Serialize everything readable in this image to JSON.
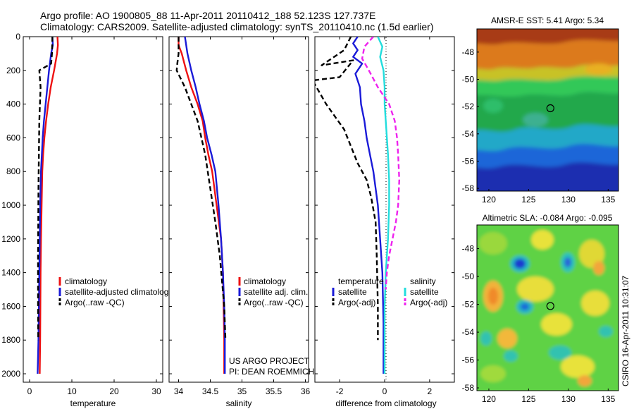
{
  "titles": {
    "line1": "Argo profile: AO 1900805_88 11-Apr-2011 20110412_188 52.123S 127.737E",
    "line2": "Climatology: CARS2009. Satellite-adjusted climatology: synTS_20110410.nc (1.5d earlier)"
  },
  "credit": {
    "line1": "US ARGO PROJECT",
    "line2": "PI: DEAN ROEMMICH",
    "stamp": "CSIRO 16-Apr-2011 10:31:07"
  },
  "colors": {
    "climatology": "#ee1111",
    "satellite": "#1a1ad8",
    "argo": "#000000",
    "salinity_satellite": "#22dddd",
    "salinity_argo": "#ee22ee"
  },
  "chart_data": [
    {
      "type": "line",
      "xlabel": "temperature",
      "ylabel": "",
      "xlim": [
        -1.5,
        31.5
      ],
      "ylim": [
        2050,
        0
      ],
      "xticks": [
        0,
        10,
        20,
        30
      ],
      "yticks": [
        0,
        200,
        400,
        600,
        800,
        1000,
        1200,
        1400,
        1600,
        1800,
        2000
      ],
      "legend": [
        "climatology",
        "satellite-adjusted climatology",
        "Argo(..raw -QC)"
      ],
      "series": [
        {
          "name": "climatology",
          "style": "solid",
          "x": [
            6.6,
            6.7,
            6.5,
            5.8,
            5.0,
            4.4,
            3.9,
            3.5,
            3.2,
            3.0,
            2.85,
            2.7,
            2.6,
            2.55,
            2.5,
            2.45,
            2.4
          ],
          "y": [
            0,
            50,
            100,
            200,
            300,
            400,
            500,
            600,
            700,
            800,
            1000,
            1200,
            1400,
            1600,
            1800,
            1900,
            2000
          ]
        },
        {
          "name": "satellite-adjusted climatology",
          "style": "solid",
          "x": [
            5.4,
            5.5,
            5.1,
            4.6,
            4.2,
            3.8,
            3.4,
            3.1,
            2.9,
            2.7,
            2.5,
            2.4,
            2.3,
            2.2,
            2.1,
            2.0,
            1.9
          ],
          "y": [
            0,
            50,
            100,
            200,
            300,
            400,
            500,
            600,
            700,
            800,
            1000,
            1200,
            1400,
            1600,
            1800,
            1900,
            2000
          ]
        },
        {
          "name": "Argo(..raw -QC)",
          "style": "dashed",
          "x": [
            5.4,
            5.3,
            5.1,
            2.3,
            2.6,
            2.3,
            2.2,
            2.1,
            2.05,
            2.0,
            2.0,
            2.05
          ],
          "y": [
            0,
            100,
            160,
            200,
            300,
            500,
            700,
            900,
            1100,
            1300,
            1600,
            1800
          ]
        }
      ]
    },
    {
      "type": "line",
      "xlabel": "salinity",
      "ylabel": "",
      "xlim": [
        33.85,
        36.05
      ],
      "ylim": [
        2050,
        0
      ],
      "xticks": [
        34,
        34.5,
        35,
        35.5,
        36
      ],
      "yticks": [
        0,
        200,
        400,
        600,
        800,
        1000,
        1200,
        1400,
        1600,
        1800,
        2000
      ],
      "legend": [
        "climatology",
        "satellite adj. clim.",
        "Argo(..raw -QC)"
      ],
      "series": [
        {
          "name": "climatology",
          "style": "solid",
          "x": [
            34.0,
            34.0,
            34.05,
            34.12,
            34.2,
            34.3,
            34.38,
            34.42,
            34.47,
            34.53,
            34.6,
            34.67,
            34.7,
            34.71,
            34.72,
            34.72,
            34.72
          ],
          "y": [
            0,
            50,
            100,
            200,
            300,
            400,
            500,
            600,
            700,
            800,
            1000,
            1200,
            1400,
            1600,
            1800,
            1900,
            2000
          ]
        },
        {
          "name": "satellite adj. clim.",
          "style": "solid",
          "x": [
            34.1,
            34.12,
            34.14,
            34.2,
            34.27,
            34.33,
            34.4,
            34.45,
            34.52,
            34.58,
            34.63,
            34.67,
            34.7,
            34.72,
            34.73,
            34.73,
            34.73
          ],
          "y": [
            0,
            50,
            100,
            200,
            300,
            400,
            500,
            600,
            700,
            800,
            1000,
            1200,
            1400,
            1600,
            1800,
            1900,
            2000
          ]
        },
        {
          "name": "Argo(..raw -QC)",
          "style": "dashed",
          "x": [
            34.0,
            34.0,
            33.98,
            33.97,
            34.1,
            34.3,
            34.42,
            34.5,
            34.58,
            34.65,
            34.72,
            34.74
          ],
          "y": [
            0,
            100,
            160,
            200,
            300,
            500,
            700,
            900,
            1100,
            1300,
            1600,
            1800
          ]
        }
      ]
    },
    {
      "type": "line",
      "xlabel": "difference from climatology",
      "ylabel": "",
      "xlim": [
        -3.1,
        3.1
      ],
      "ylim": [
        2050,
        0
      ],
      "xticks": [
        -2,
        0,
        2
      ],
      "yticks": [
        0,
        200,
        400,
        600,
        800,
        1000,
        1200,
        1400,
        1600,
        1800,
        2000
      ],
      "legend_left_title": "temperature",
      "legend_right_title": "salinity",
      "legend": [
        "satellite",
        "Argo(-adj)",
        "satellite",
        "Argo(-adj)"
      ],
      "series": [
        {
          "name": "satellite",
          "group": "temperature",
          "style": "solid",
          "x": [
            -1.2,
            -1.4,
            -1.2,
            -1.4,
            -1.0,
            -1.3,
            -1.1,
            -1.05,
            -0.9,
            -0.8,
            -0.65,
            -0.5,
            -0.4,
            -0.3,
            -0.2,
            -0.1,
            -0.05,
            -0.05
          ],
          "y": [
            0,
            40,
            80,
            120,
            160,
            220,
            300,
            400,
            500,
            600,
            700,
            800,
            900,
            1000,
            1200,
            1400,
            1700,
            2000
          ]
        },
        {
          "name": "Argo(-adj)",
          "group": "temperature",
          "style": "dashed",
          "x": [
            -1.5,
            -1.8,
            -2.8,
            -1.4,
            -2.0,
            -3.2,
            -2.6,
            -1.8,
            -1.5,
            -1.2,
            -0.8,
            -0.6,
            -0.4,
            -0.35,
            -0.3,
            -0.3
          ],
          "y": [
            0,
            80,
            170,
            140,
            240,
            260,
            400,
            550,
            650,
            750,
            850,
            950,
            1100,
            1300,
            1600,
            1800
          ]
        },
        {
          "name": "satellite",
          "group": "salinity",
          "style": "solid",
          "x": [
            -0.3,
            -0.1,
            -0.2,
            -0.05,
            0.0,
            0.0,
            0.05,
            0.1,
            0.15,
            0.2,
            0.2,
            0.15,
            0.05,
            0.0,
            0.0,
            0.0
          ],
          "y": [
            0,
            60,
            120,
            200,
            300,
            400,
            500,
            600,
            700,
            850,
            1000,
            1200,
            1400,
            1600,
            1800,
            2000
          ]
        },
        {
          "name": "Argo(-adj)",
          "group": "salinity",
          "style": "dashed",
          "x": [
            -0.5,
            -0.9,
            -1.0,
            -0.7,
            -0.3,
            0.2,
            0.45,
            0.55,
            0.6,
            0.65,
            0.6,
            0.5,
            0.35,
            0.2,
            0.1,
            0.05
          ],
          "y": [
            0,
            60,
            130,
            200,
            300,
            400,
            500,
            600,
            700,
            850,
            1000,
            1100,
            1200,
            1300,
            1400,
            1500
          ]
        }
      ]
    },
    {
      "type": "heatmap",
      "title": "AMSR-E SST: 5.41 Argo: 5.34",
      "xlim": [
        118.5,
        136.3
      ],
      "ylim": [
        -58.2,
        -46.3
      ],
      "xticks": [
        120,
        125,
        130,
        135
      ],
      "yticks": [
        -48,
        -50,
        -52,
        -54,
        -56,
        -58
      ],
      "marker": {
        "lon": 127.737,
        "lat": -52.123
      }
    },
    {
      "type": "heatmap",
      "title": "Altimetric SLA: -0.084 Argo: -0.095",
      "xlim": [
        118.5,
        136.3
      ],
      "ylim": [
        -58.2,
        -46.3
      ],
      "xticks": [
        120,
        125,
        130,
        135
      ],
      "yticks": [
        -48,
        -50,
        -52,
        -54,
        -56,
        -58
      ],
      "marker": {
        "lon": 127.737,
        "lat": -52.123
      }
    }
  ]
}
